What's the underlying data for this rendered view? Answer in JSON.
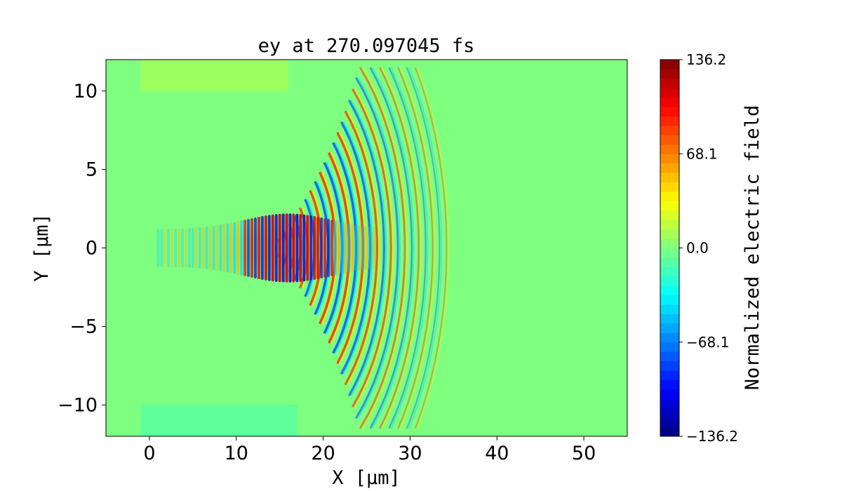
{
  "chart_data": {
    "type": "heatmap",
    "title": "ey at 270.097045 fs",
    "xlabel": "X [μm]",
    "ylabel": "Y [μm]",
    "xlim": [
      -5,
      55
    ],
    "ylim": [
      -12,
      12
    ],
    "x_ticks": [
      0,
      10,
      20,
      30,
      40,
      50
    ],
    "x_tick_labels": [
      "0",
      "10",
      "20",
      "30",
      "40",
      "50"
    ],
    "y_ticks": [
      10,
      5,
      0,
      -5,
      -10
    ],
    "y_tick_labels": [
      "10",
      "5",
      "0",
      "−5",
      "−10"
    ],
    "colormap": "jet",
    "colorbar": {
      "label": "Normalized electric field",
      "range": [
        -136.2,
        136.2
      ],
      "ticks": [
        136.2,
        68.1,
        0.0,
        -68.1,
        -136.2
      ],
      "tick_labels": [
        "136.2",
        "68.1",
        "0.0",
        "−68.1",
        "−136.2"
      ]
    },
    "field_features": {
      "background_value": 0,
      "wavefront_max_x": 35,
      "peak_region_x": [
        10,
        24
      ],
      "wave_spacing_um": 0.8
    },
    "colors": {
      "background_green": "#7fff7f",
      "positive": "#ff0000",
      "negative": "#0000ff"
    }
  }
}
